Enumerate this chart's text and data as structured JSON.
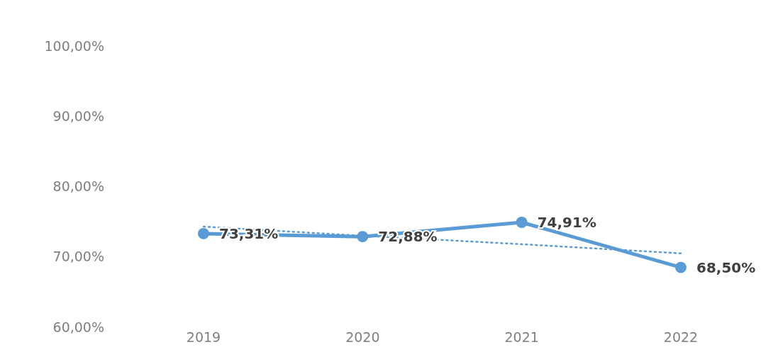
{
  "chart_data": {
    "type": "line",
    "categories": [
      "2019",
      "2020",
      "2021",
      "2022"
    ],
    "series": [
      {
        "color": "#5b9bd5",
        "values": [
          73.31,
          72.88,
          74.91,
          68.5
        ],
        "value_labels": [
          "73,31%",
          "72,88%",
          "74,91%",
          "68,50%"
        ],
        "marker": "circle",
        "line_style": "solid"
      },
      {
        "type": "line",
        "color": "#5b9bd5",
        "values": [
          74.3,
          73.0,
          71.8,
          70.5
        ],
        "marker": "none",
        "line_style": "dotted"
      }
    ],
    "ylim": [
      60,
      100
    ],
    "yticks": [
      {
        "value": 60,
        "label": "60,00%"
      },
      {
        "value": 70,
        "label": "70,00%"
      },
      {
        "value": 80,
        "label": "80,00%"
      },
      {
        "value": 90,
        "label": "90,00%"
      },
      {
        "value": 100,
        "label": "100,00%"
      }
    ],
    "grid": false,
    "legend": false
  }
}
